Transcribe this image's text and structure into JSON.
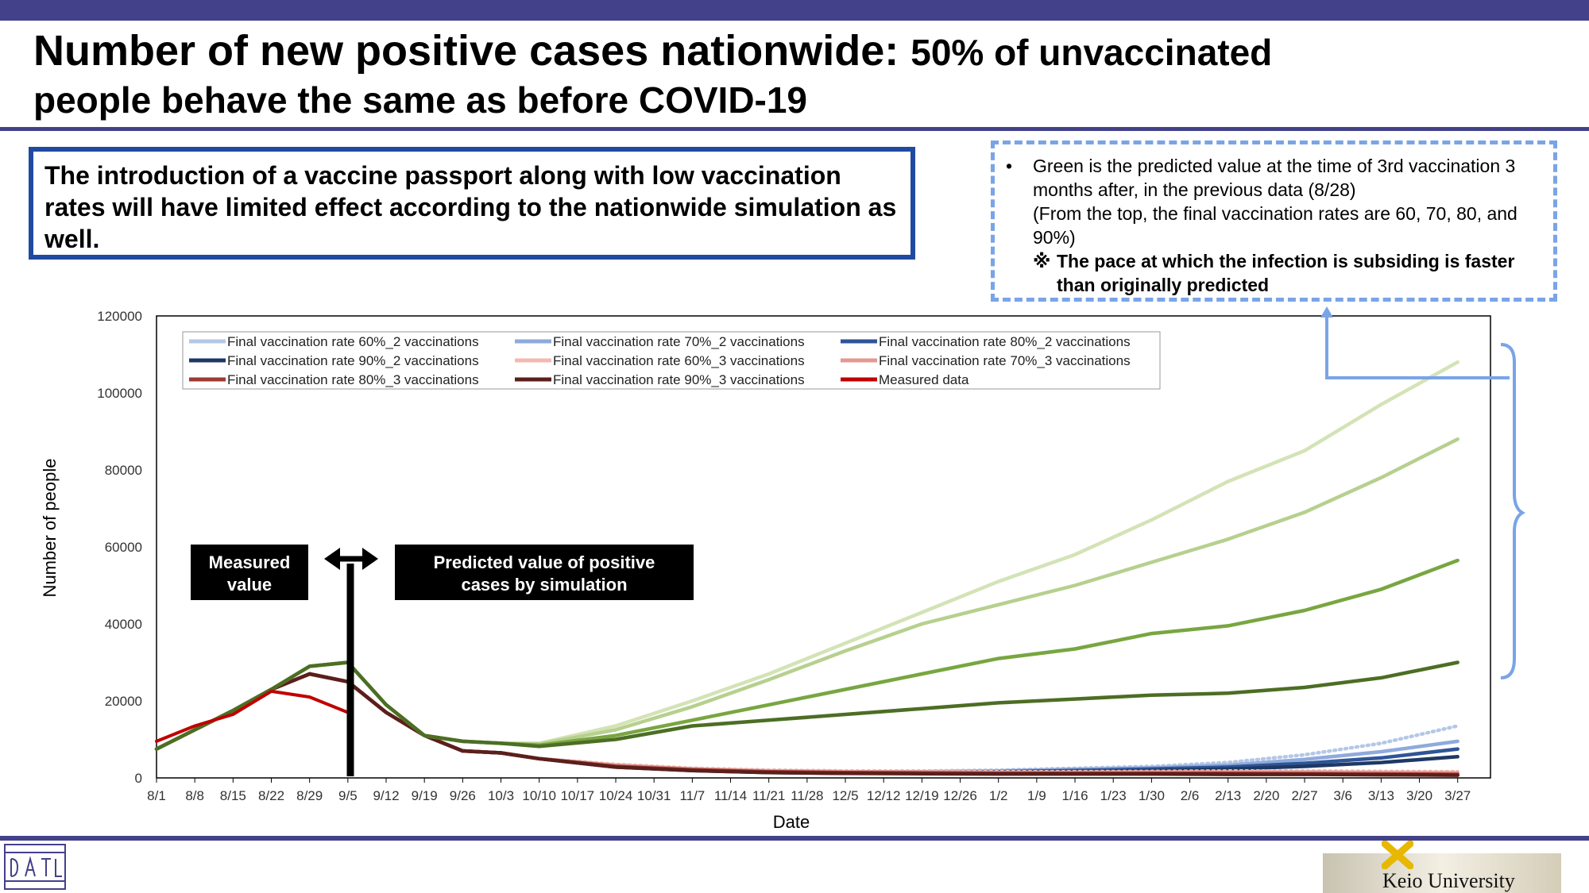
{
  "header": {
    "title_part1": "Number of new positive cases nationwide: ",
    "title_part2": "50% of unvaccinated",
    "title_part3": "people behave the same as before COVID-19"
  },
  "key_message": "The introduction of a vaccine passport along with low vaccination rates will have limited effect according to the nationwide simulation as well.",
  "note": {
    "bullet": "•",
    "line1": "Green is the predicted value at the time of 3rd vaccination 3 months after, in the previous data (8/28)",
    "line2": "(From the top, the final vaccination rates are 60, 70, 80, and 90%)",
    "mark": "※",
    "line3": "The pace at which the infection is subsiding is faster than originally predicted"
  },
  "callouts": {
    "measured": "Measured value",
    "predicted": "Predicted value of positive cases by simulation"
  },
  "footer": {
    "university": "Keio University"
  },
  "colors": {
    "brand_bar": "#43418a",
    "measured": "#c00000",
    "green_60": "#d3e3b6",
    "green_70": "#b6d08e",
    "green_80": "#78a640",
    "green_90": "#4c6e24"
  },
  "chart_data": {
    "type": "line",
    "title": "",
    "xlabel": "Date",
    "ylabel": "Number of people",
    "ylim": [
      0,
      120000
    ],
    "yticks": [
      0,
      20000,
      40000,
      60000,
      80000,
      100000,
      120000
    ],
    "xticks": [
      "8/1",
      "8/8",
      "8/15",
      "8/22",
      "8/29",
      "9/5",
      "9/12",
      "9/19",
      "9/26",
      "10/3",
      "10/10",
      "10/17",
      "10/24",
      "10/31",
      "11/7",
      "11/14",
      "11/21",
      "11/28",
      "12/5",
      "12/12",
      "12/19",
      "12/26",
      "1/2",
      "1/9",
      "1/16",
      "1/23",
      "1/30",
      "2/6",
      "2/13",
      "2/20",
      "2/27",
      "3/6",
      "3/13",
      "3/20",
      "3/27"
    ],
    "x_range": [
      "8/1",
      "4/2"
    ],
    "grid": false,
    "legend_position": "top-left",
    "legend": [
      {
        "name": "Final vaccination rate 60%_2 vaccinations",
        "color": "#b4c7e7"
      },
      {
        "name": "Final vaccination rate 70%_2 vaccinations",
        "color": "#8faadc"
      },
      {
        "name": "Final vaccination rate 80%_2 vaccinations",
        "color": "#2f5597"
      },
      {
        "name": "Final vaccination rate 90%_2 vaccinations",
        "color": "#1f3864"
      },
      {
        "name": "Final vaccination rate 60%_3 vaccinations",
        "color": "#f4b8b0"
      },
      {
        "name": "Final vaccination rate 70%_3 vaccinations",
        "color": "#e49891"
      },
      {
        "name": "Final vaccination rate 80%_3 vaccinations",
        "color": "#9e3a33"
      },
      {
        "name": "Final vaccination rate 90%_3 vaccinations",
        "color": "#5b1f1b"
      },
      {
        "name": "Measured data",
        "color": "#c00000"
      }
    ],
    "series": [
      {
        "key": "measured",
        "color": "#c00000",
        "days": [
          0,
          7,
          14,
          21,
          28,
          35
        ],
        "values": [
          9500,
          13500,
          16500,
          22500,
          21000,
          17000
        ]
      },
      {
        "key": "green_60",
        "color": "#d3e3b6",
        "days": [
          0,
          7,
          14,
          21,
          28,
          35,
          42,
          49,
          56,
          63,
          70,
          84,
          98,
          112,
          126,
          140,
          154,
          168,
          182,
          196,
          210,
          224,
          238
        ],
        "values": [
          7500,
          12500,
          17500,
          23000,
          29000,
          30000,
          19000,
          11000,
          9500,
          9000,
          9000,
          13500,
          20000,
          27000,
          35000,
          43000,
          51000,
          58000,
          67000,
          77000,
          85000,
          97000,
          108000
        ]
      },
      {
        "key": "green_70",
        "color": "#b6d08e",
        "days": [
          0,
          7,
          14,
          21,
          28,
          35,
          42,
          49,
          56,
          63,
          70,
          84,
          98,
          112,
          126,
          140,
          154,
          168,
          182,
          196,
          210,
          224,
          238
        ],
        "values": [
          7500,
          12500,
          17500,
          23000,
          29000,
          30000,
          19000,
          11000,
          9500,
          9000,
          8800,
          12500,
          18500,
          25500,
          33000,
          40000,
          45000,
          50000,
          56000,
          62000,
          69000,
          78000,
          88000
        ]
      },
      {
        "key": "green_80",
        "color": "#78a640",
        "days": [
          0,
          7,
          14,
          21,
          28,
          35,
          42,
          49,
          56,
          63,
          70,
          84,
          98,
          112,
          126,
          140,
          154,
          168,
          182,
          196,
          210,
          224,
          238
        ],
        "values": [
          7500,
          12500,
          17500,
          23000,
          29000,
          30000,
          19000,
          11000,
          9500,
          9000,
          8500,
          11000,
          15000,
          19000,
          23000,
          27000,
          31000,
          33500,
          37500,
          39500,
          43500,
          49000,
          56500
        ]
      },
      {
        "key": "green_90",
        "color": "#4c6e24",
        "days": [
          0,
          7,
          14,
          21,
          28,
          35,
          42,
          49,
          56,
          63,
          70,
          84,
          98,
          112,
          126,
          140,
          154,
          168,
          182,
          196,
          210,
          224,
          238
        ],
        "values": [
          7500,
          12500,
          17500,
          23000,
          29000,
          30000,
          19000,
          11000,
          9500,
          9000,
          8200,
          10000,
          13500,
          15000,
          16500,
          18000,
          19500,
          20500,
          21500,
          22000,
          23500,
          26000,
          30000
        ]
      },
      {
        "key": "rate60_2",
        "color": "#b4c7e7",
        "dashed": true,
        "days": [
          0,
          7,
          14,
          21,
          28,
          35,
          42,
          49,
          56,
          63,
          70,
          84,
          98,
          112,
          126,
          140,
          154,
          168,
          182,
          196,
          210,
          224,
          238
        ],
        "values": [
          7500,
          12500,
          17500,
          23000,
          27000,
          25000,
          17000,
          11000,
          7000,
          6500,
          5000,
          3500,
          2500,
          2000,
          1800,
          1800,
          2000,
          2500,
          3000,
          4000,
          6000,
          9000,
          13500
        ]
      },
      {
        "key": "rate70_2",
        "color": "#8faadc",
        "days": [
          0,
          7,
          14,
          21,
          28,
          35,
          42,
          49,
          56,
          63,
          70,
          84,
          98,
          112,
          126,
          140,
          154,
          168,
          182,
          196,
          210,
          224,
          238
        ],
        "values": [
          7500,
          12500,
          17500,
          23000,
          27000,
          25000,
          17000,
          11000,
          7000,
          6500,
          5000,
          3300,
          2300,
          1800,
          1600,
          1600,
          1800,
          2200,
          2600,
          3300,
          4800,
          6800,
          9500
        ]
      },
      {
        "key": "rate80_2",
        "color": "#2f5597",
        "days": [
          0,
          7,
          14,
          21,
          28,
          35,
          42,
          49,
          56,
          63,
          70,
          84,
          98,
          112,
          126,
          140,
          154,
          168,
          182,
          196,
          210,
          224,
          238
        ],
        "values": [
          7500,
          12500,
          17500,
          23000,
          27000,
          25000,
          17000,
          11000,
          7000,
          6500,
          5000,
          3000,
          2100,
          1600,
          1400,
          1400,
          1600,
          1900,
          2300,
          2800,
          3800,
          5200,
          7500
        ]
      },
      {
        "key": "rate90_2",
        "color": "#1f3864",
        "days": [
          0,
          7,
          14,
          21,
          28,
          35,
          42,
          49,
          56,
          63,
          70,
          84,
          98,
          112,
          126,
          140,
          154,
          168,
          182,
          196,
          210,
          224,
          238
        ],
        "values": [
          7500,
          12500,
          17500,
          23000,
          27000,
          25000,
          17000,
          11000,
          7000,
          6500,
          5000,
          2800,
          1900,
          1400,
          1200,
          1200,
          1400,
          1600,
          1900,
          2300,
          3000,
          4000,
          5500
        ]
      },
      {
        "key": "rate60_3",
        "color": "#f4b8b0",
        "dashed": true,
        "days": [
          0,
          7,
          14,
          21,
          28,
          35,
          42,
          49,
          56,
          63,
          70,
          84,
          98,
          112,
          126,
          140,
          154,
          168,
          182,
          196,
          210,
          224,
          238
        ],
        "values": [
          7500,
          12500,
          17500,
          23000,
          27000,
          25000,
          17000,
          11000,
          7000,
          6500,
          5000,
          3500,
          2500,
          2000,
          1800,
          1700,
          1600,
          1600,
          1700,
          1800,
          1800,
          1700,
          1600
        ]
      },
      {
        "key": "rate70_3",
        "color": "#e49891",
        "days": [
          0,
          7,
          14,
          21,
          28,
          35,
          42,
          49,
          56,
          63,
          70,
          84,
          98,
          112,
          126,
          140,
          154,
          168,
          182,
          196,
          210,
          224,
          238
        ],
        "values": [
          7500,
          12500,
          17500,
          23000,
          27000,
          25000,
          17000,
          11000,
          7000,
          6500,
          5000,
          3300,
          2300,
          1800,
          1600,
          1500,
          1400,
          1400,
          1500,
          1500,
          1500,
          1400,
          1300
        ]
      },
      {
        "key": "rate80_3",
        "color": "#9e3a33",
        "days": [
          0,
          7,
          14,
          21,
          28,
          35,
          42,
          49,
          56,
          63,
          70,
          84,
          98,
          112,
          126,
          140,
          154,
          168,
          182,
          196,
          210,
          224,
          238
        ],
        "values": [
          7500,
          12500,
          17500,
          23000,
          27000,
          25000,
          17000,
          11000,
          7000,
          6500,
          5000,
          3000,
          2100,
          1600,
          1400,
          1300,
          1200,
          1200,
          1200,
          1200,
          1100,
          1000,
          900
        ]
      },
      {
        "key": "rate90_3",
        "color": "#5b1f1b",
        "days": [
          0,
          7,
          14,
          21,
          28,
          35,
          42,
          49,
          56,
          63,
          70,
          84,
          98,
          112,
          126,
          140,
          154,
          168,
          182,
          196,
          210,
          224,
          238
        ],
        "values": [
          7500,
          12500,
          17500,
          23000,
          27000,
          25000,
          17000,
          11000,
          7000,
          6500,
          5000,
          2800,
          1900,
          1400,
          1200,
          1100,
          1000,
          1000,
          1000,
          900,
          900,
          800,
          700
        ]
      }
    ]
  }
}
